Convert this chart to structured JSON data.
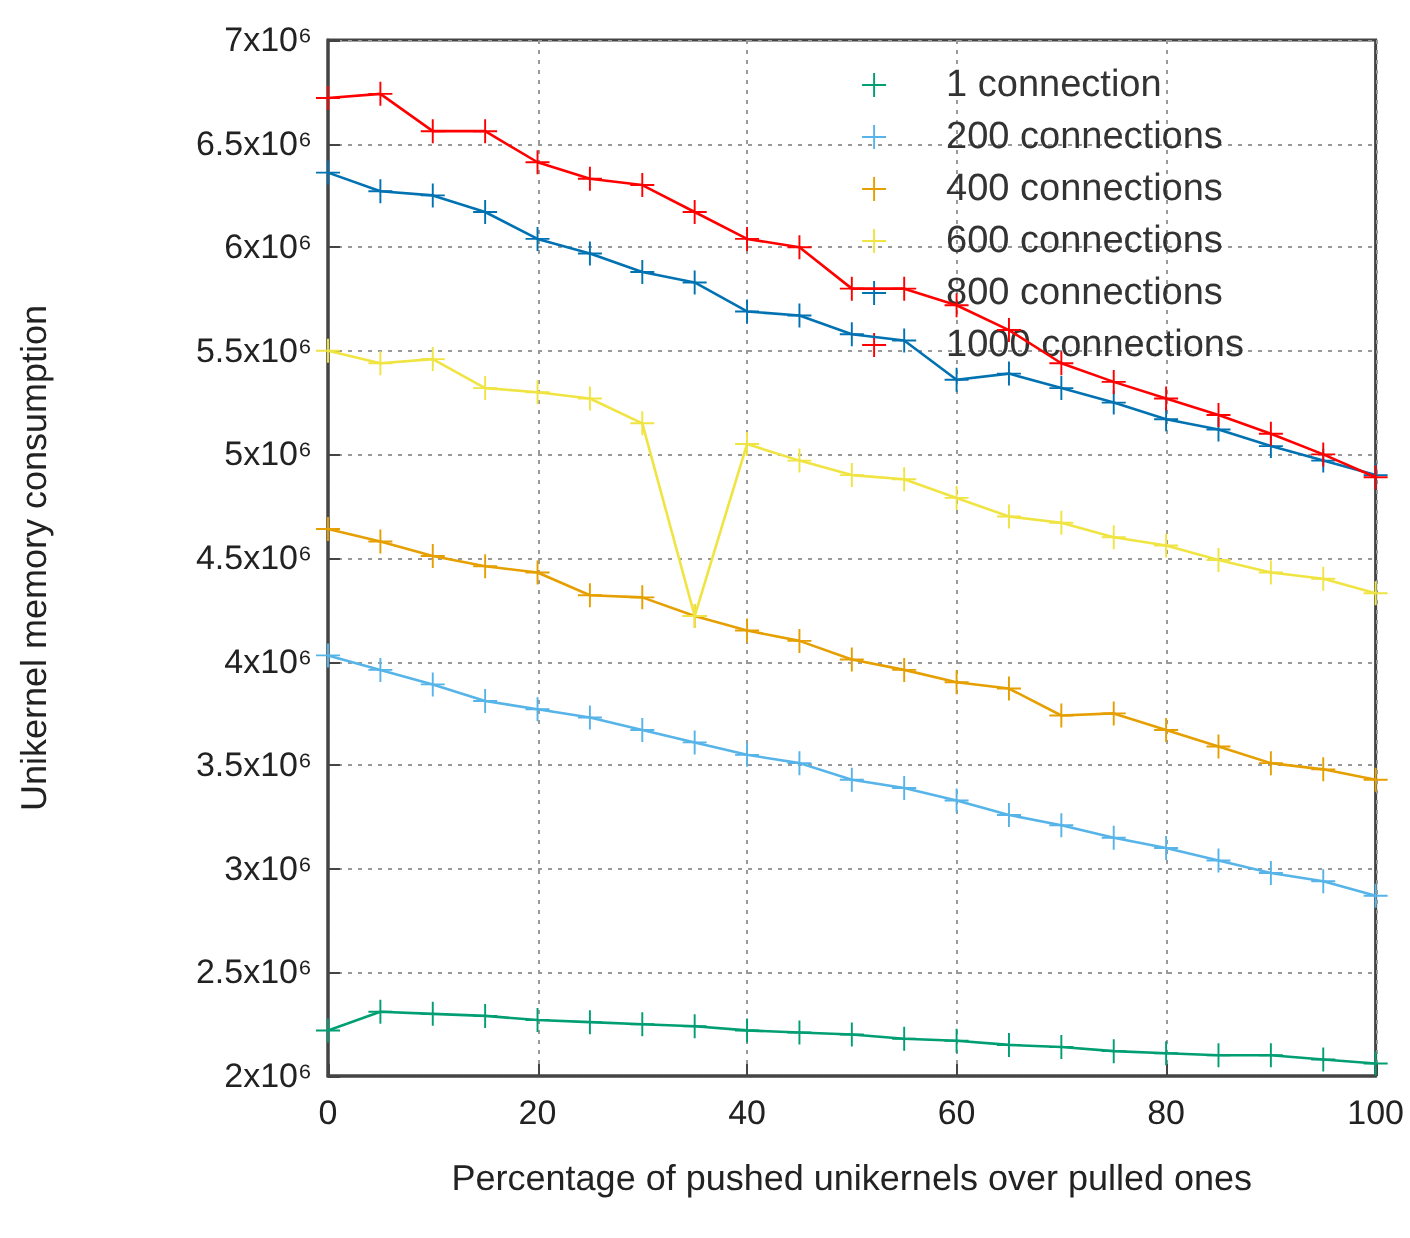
{
  "chart_data": {
    "type": "line",
    "xlabel": "Percentage of pushed unikernels over pulled ones",
    "ylabel": "Unikernel memory consumption",
    "x": [
      0,
      5,
      10,
      15,
      20,
      25,
      30,
      35,
      40,
      45,
      50,
      55,
      60,
      65,
      70,
      75,
      80,
      85,
      90,
      95,
      100
    ],
    "xlim": [
      0,
      100
    ],
    "xticks": [
      0,
      20,
      40,
      60,
      80,
      100
    ],
    "ylim": [
      2000000,
      7000000
    ],
    "yticks": [
      {
        "value": 2000000,
        "label": "2x10⁶"
      },
      {
        "value": 2500000,
        "label": "2.5x10⁶"
      },
      {
        "value": 3000000,
        "label": "3x10⁶"
      },
      {
        "value": 3500000,
        "label": "3.5x10⁶"
      },
      {
        "value": 4000000,
        "label": "4x10⁶"
      },
      {
        "value": 4500000,
        "label": "4.5x10⁶"
      },
      {
        "value": 5000000,
        "label": "5x10⁶"
      },
      {
        "value": 5500000,
        "label": "5.5x10⁶"
      },
      {
        "value": 6000000,
        "label": "6x10⁶"
      },
      {
        "value": 6500000,
        "label": "6.5x10⁶"
      },
      {
        "value": 7000000,
        "label": "7x10⁶"
      }
    ],
    "grid": true,
    "legend": "top right",
    "marker": "cross",
    "line_style": "solid",
    "series": [
      {
        "name": "1 connection",
        "color": "#009e73",
        "values": [
          2220000,
          2310000,
          2300000,
          2290000,
          2270000,
          2260000,
          2250000,
          2240000,
          2220000,
          2210000,
          2200000,
          2180000,
          2170000,
          2150000,
          2140000,
          2120000,
          2110000,
          2100000,
          2100000,
          2080000,
          2060000
        ]
      },
      {
        "name": "200 connections",
        "color": "#56b4e9",
        "values": [
          4030000,
          3960000,
          3890000,
          3810000,
          3770000,
          3730000,
          3670000,
          3610000,
          3550000,
          3510000,
          3430000,
          3390000,
          3330000,
          3260000,
          3210000,
          3150000,
          3100000,
          3040000,
          2980000,
          2940000,
          2870000
        ]
      },
      {
        "name": "400 connections",
        "color": "#e69f00",
        "values": [
          4640000,
          4580000,
          4510000,
          4460000,
          4430000,
          4320000,
          4310000,
          4220000,
          4150000,
          4100000,
          4010000,
          3960000,
          3900000,
          3870000,
          3740000,
          3750000,
          3670000,
          3590000,
          3510000,
          3480000,
          3430000
        ]
      },
      {
        "name": "600 connections",
        "color": "#f0e442",
        "values": [
          5500000,
          5440000,
          5460000,
          5320000,
          5300000,
          5270000,
          5150000,
          4220000,
          5050000,
          4970000,
          4900000,
          4880000,
          4790000,
          4700000,
          4670000,
          4600000,
          4560000,
          4490000,
          4430000,
          4400000,
          4330000
        ]
      },
      {
        "name": "800 connections",
        "color": "#0072b2",
        "values": [
          6360000,
          6270000,
          6250000,
          6170000,
          6040000,
          5970000,
          5880000,
          5830000,
          5690000,
          5670000,
          5580000,
          5550000,
          5360000,
          5390000,
          5320000,
          5250000,
          5170000,
          5120000,
          5040000,
          4970000,
          4900000
        ]
      },
      {
        "name": "1000 connections",
        "color": "#ff0000",
        "values": [
          6720000,
          6740000,
          6560000,
          6560000,
          6410000,
          6330000,
          6300000,
          6170000,
          6040000,
          6000000,
          5800000,
          5800000,
          5720000,
          5600000,
          5440000,
          5350000,
          5270000,
          5190000,
          5100000,
          5000000,
          4890000
        ]
      }
    ]
  }
}
